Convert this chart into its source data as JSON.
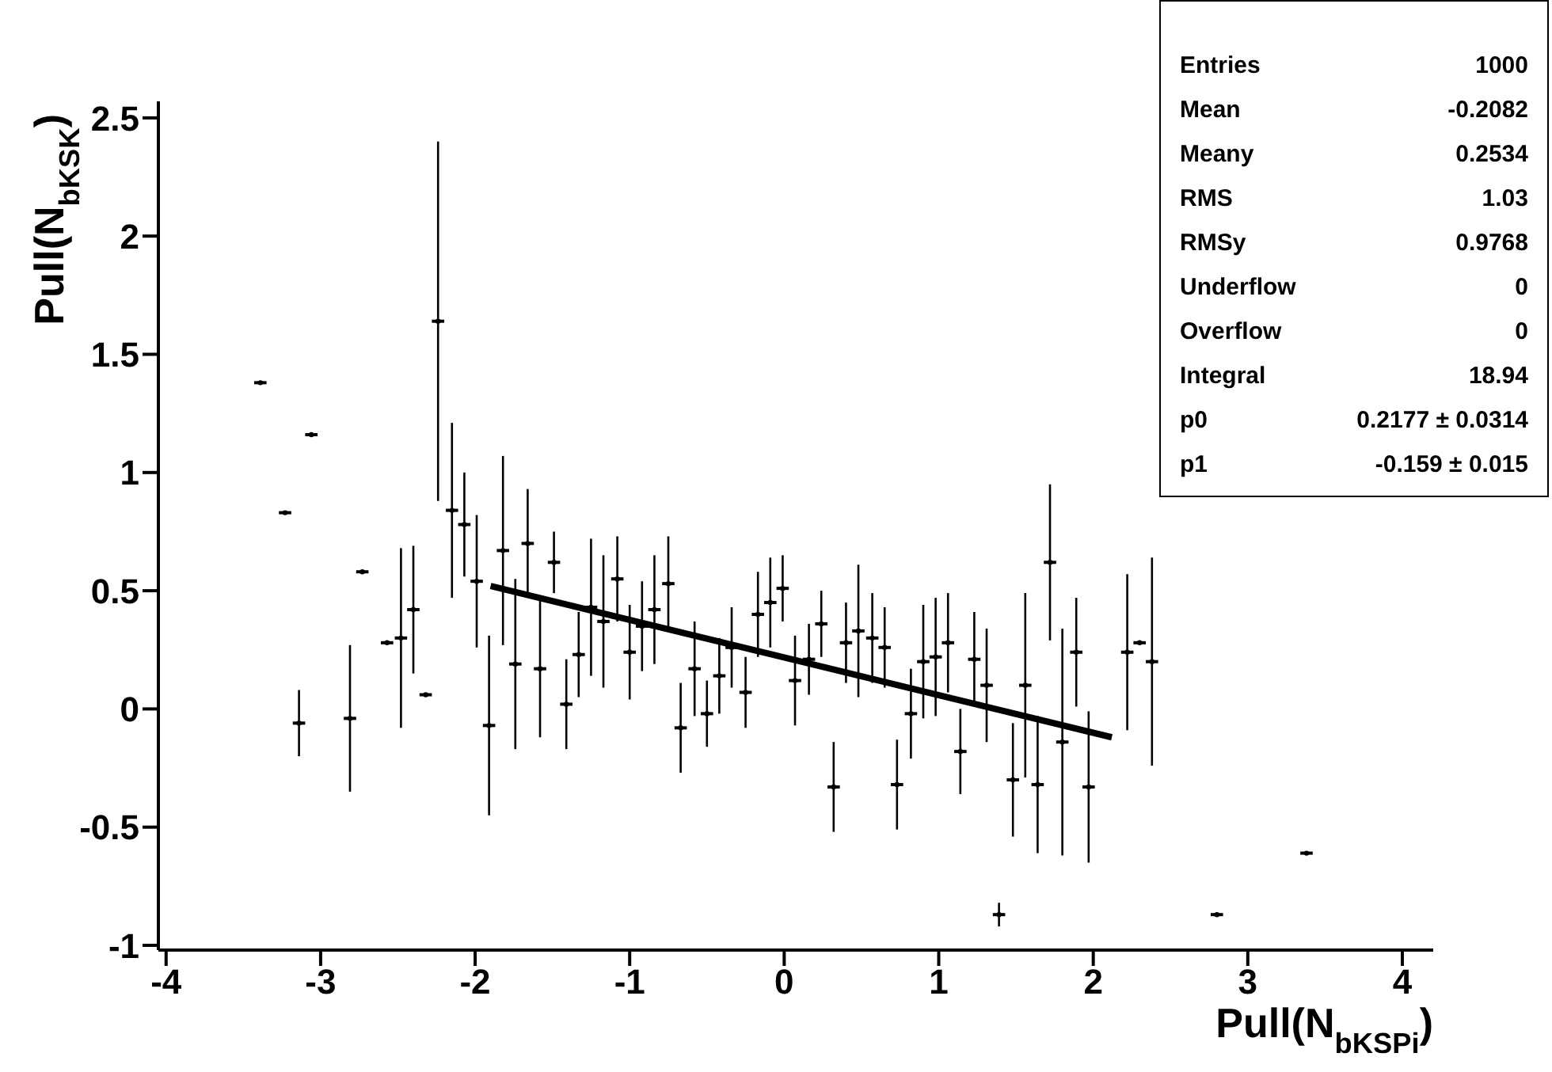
{
  "chart_data": {
    "type": "scatter",
    "xlabel": "Pull(N$_{bK}$$_{S}$$_{Pi}$)",
    "ylabel": "Pull(N$_{bK}$$_{S}$$_{K}$)",
    "xlim": [
      -4.05,
      4.2
    ],
    "xticks": [
      -4,
      -3,
      -2,
      -1,
      0,
      1,
      2,
      3,
      4
    ],
    "ylim": [
      -1.02,
      2.57
    ],
    "yticks": [
      -1,
      -0.5,
      0,
      0.5,
      1,
      1.5,
      2,
      2.5
    ],
    "grid": false,
    "marker": "none",
    "series": [
      {
        "type": "scatter",
        "color": "#000000",
        "x": [
          -3.39,
          -3.23,
          -3.14,
          -3.06,
          -2.81,
          -2.73,
          -2.57,
          -2.48,
          -2.4,
          -2.32,
          -2.24,
          -2.15,
          -2.07,
          -1.99,
          -1.91,
          -1.82,
          -1.74,
          -1.66,
          -1.58,
          -1.49,
          -1.41,
          -1.33,
          -1.25,
          -1.17,
          -1.08,
          -1.0,
          -0.92,
          -0.84,
          -0.75,
          -0.67,
          -0.58,
          -0.5,
          -0.42,
          -0.34,
          -0.25,
          -0.17,
          -0.09,
          -0.01,
          0.07,
          0.16,
          0.24,
          0.32,
          0.4,
          0.48,
          0.57,
          0.65,
          0.73,
          0.82,
          0.9,
          0.98,
          1.06,
          1.14,
          1.23,
          1.31,
          1.39,
          1.48,
          1.56,
          1.64,
          1.72,
          1.8,
          1.89,
          1.97,
          2.22,
          2.3,
          2.38,
          2.8,
          3.38
        ],
        "values": [
          1.38,
          0.83,
          -0.06,
          1.16,
          -0.04,
          0.58,
          0.28,
          0.3,
          0.42,
          0.06,
          1.64,
          0.84,
          0.78,
          0.54,
          -0.07,
          0.67,
          0.19,
          0.7,
          0.17,
          0.62,
          0.02,
          0.23,
          0.43,
          0.37,
          0.55,
          0.24,
          0.35,
          0.42,
          0.53,
          -0.08,
          0.17,
          -0.02,
          0.14,
          0.26,
          0.07,
          0.4,
          0.45,
          0.51,
          0.12,
          0.21,
          0.36,
          -0.33,
          0.28,
          0.33,
          0.3,
          0.26,
          -0.32,
          -0.02,
          0.2,
          0.22,
          0.28,
          -0.18,
          0.21,
          0.1,
          -0.87,
          -0.3,
          0.1,
          -0.32,
          0.62,
          -0.14,
          0.24,
          -0.33,
          0.24,
          0.28,
          0.2,
          -0.87,
          -0.61
        ],
        "errors": [
          null,
          null,
          0.14,
          null,
          0.31,
          null,
          null,
          0.38,
          0.27,
          null,
          0.76,
          0.37,
          0.22,
          0.28,
          0.38,
          0.4,
          0.36,
          0.23,
          0.29,
          0.13,
          0.19,
          0.18,
          0.29,
          0.28,
          0.18,
          0.2,
          0.19,
          0.23,
          0.2,
          0.19,
          0.2,
          0.14,
          0.16,
          0.17,
          0.15,
          0.18,
          0.19,
          0.14,
          0.19,
          0.15,
          0.14,
          0.19,
          0.17,
          0.28,
          0.19,
          0.17,
          0.19,
          0.19,
          0.24,
          0.25,
          0.21,
          0.18,
          0.2,
          0.24,
          0.05,
          0.24,
          0.39,
          0.29,
          0.33,
          0.48,
          0.23,
          0.32,
          0.33,
          null,
          0.44,
          null,
          null
        ],
        "xerrors": [
          0.04,
          0.04,
          0.04,
          0.04,
          0.04,
          0.04,
          0.04,
          0.04,
          0.04,
          0.04,
          0.04,
          0.04,
          0.04,
          0.04,
          0.04,
          0.04,
          0.04,
          0.04,
          0.04,
          0.04,
          0.04,
          0.04,
          0.04,
          0.04,
          0.04,
          0.04,
          0.04,
          0.04,
          0.04,
          0.04,
          0.04,
          0.04,
          0.04,
          0.04,
          0.04,
          0.04,
          0.04,
          0.04,
          0.04,
          0.04,
          0.04,
          0.04,
          0.04,
          0.04,
          0.04,
          0.04,
          0.04,
          0.04,
          0.04,
          0.04,
          0.04,
          0.04,
          0.04,
          0.04,
          0.04,
          0.04,
          0.04,
          0.04,
          0.04,
          0.04,
          0.04,
          0.04,
          0.04,
          0.04,
          0.04,
          0.04,
          0.04
        ]
      },
      {
        "type": "line",
        "color": "#000000",
        "x": [
          -1.9,
          2.12
        ],
        "values": [
          0.52,
          -0.12
        ]
      }
    ],
    "annotations": [
      "Entries",
      "1000",
      "Mean",
      "-0.2082",
      "Meany",
      "0.2534",
      "RMS",
      "1.03",
      "RMSy",
      "0.9768",
      "Underflow",
      "0",
      "Overflow",
      "0",
      "Integral",
      "18.94",
      "p0",
      "0.2177 ± 0.0314",
      "p1",
      "-0.159 ± 0.015"
    ]
  }
}
